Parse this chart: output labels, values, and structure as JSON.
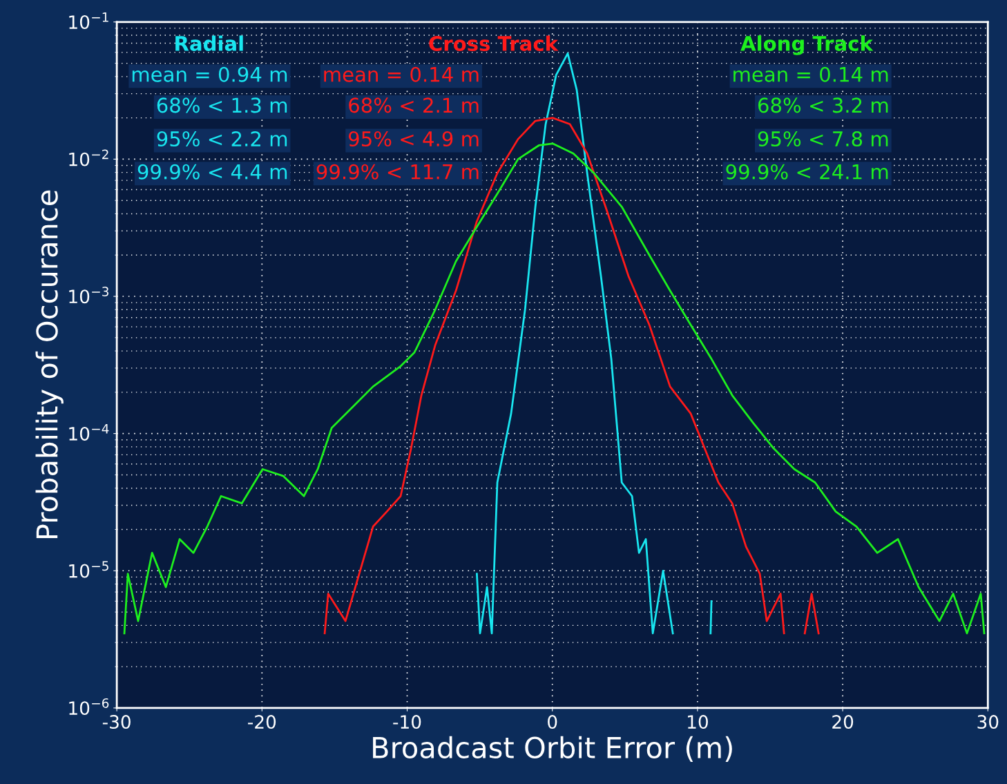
{
  "chart_data": {
    "type": "line",
    "xlabel": "Broadcast Orbit Error (m)",
    "ylabel": "Probability of Occurance",
    "log": "y",
    "grid": true,
    "xlim": [
      -30,
      30
    ],
    "xticks": [
      -30,
      -20,
      -10,
      0,
      10,
      20,
      30
    ],
    "ylim": [
      1e-06,
      0.1
    ],
    "yticks": [
      {
        "value": 1e-06,
        "label": "10$^{−6}$"
      },
      {
        "value": 1e-05,
        "label": "10$^{−5}$"
      },
      {
        "value": 0.0001,
        "label": "10$^{−4}$"
      },
      {
        "value": 0.001,
        "label": "10$^{−3}$"
      },
      {
        "value": 0.01,
        "label": "10$^{−2}$"
      },
      {
        "value": 0.1,
        "label": "10$^{−1}$"
      }
    ],
    "series": [
      {
        "name": "Radial",
        "color": "#19e6f0",
        "x": [
          -5.2,
          -4.98,
          -4.5,
          -4.17,
          -3.79,
          -2.84,
          -1.88,
          -1.17,
          -0.46,
          0.26,
          1.06,
          1.68,
          2.4,
          3.35,
          4.06,
          4.78,
          5.49,
          5.97,
          6.44,
          6.92,
          7.63,
          8.3,
          9.5,
          10.9,
          10.96
        ],
        "values": [
          9.5e-06,
          3.5e-06,
          7.6e-06,
          3.5e-06,
          4.4e-05,
          0.00014,
          0.0008,
          0.0045,
          0.018,
          0.041,
          0.059,
          0.032,
          0.0079,
          0.0014,
          0.00035,
          4.4e-05,
          3.5e-05,
          1.35e-05,
          1.7e-05,
          3.5e-06,
          1e-05,
          3.5e-06,
          null,
          3.5e-06,
          6e-06
        ]
      },
      {
        "name": "Cross Track",
        "color": "#ff1a1a",
        "x": [
          -15.68,
          -15.44,
          -14.25,
          -13.3,
          -12.35,
          -11.4,
          -10.45,
          -9.73,
          -9.02,
          -8.07,
          -6.64,
          -5.21,
          -3.79,
          -2.36,
          -1.17,
          0.02,
          1.21,
          2.4,
          3.83,
          5.25,
          6.68,
          8.11,
          9.53,
          10.49,
          11.44,
          12.39,
          13.34,
          14.29,
          14.77,
          15.72,
          15.96,
          16.8,
          17.39,
          17.86,
          18.34
        ],
        "values": [
          3.5e-06,
          6.8e-06,
          4.3e-06,
          9.5e-06,
          2.1e-05,
          2.7e-05,
          3.5e-05,
          7.8e-05,
          0.00019,
          0.00044,
          0.0011,
          0.0035,
          0.0079,
          0.014,
          0.019,
          0.02,
          0.018,
          0.011,
          0.004,
          0.0014,
          0.00062,
          0.00022,
          0.00014,
          7.8e-05,
          4.4e-05,
          3.1e-05,
          1.5e-05,
          9.5e-06,
          4.3e-06,
          6.8e-06,
          3.5e-06,
          null,
          3.5e-06,
          6.8e-06,
          3.5e-06
        ]
      },
      {
        "name": "Along Track",
        "color": "#1ef01e",
        "x": [
          -29.48,
          -29.24,
          -28.53,
          -27.57,
          -26.62,
          -25.67,
          -24.72,
          -23.77,
          -22.82,
          -21.39,
          -19.96,
          -18.53,
          -17.11,
          -16.16,
          -15.2,
          -13.78,
          -12.35,
          -10.45,
          -9.5,
          -8.07,
          -6.64,
          -5.21,
          -3.79,
          -2.36,
          -0.93,
          0.02,
          1.45,
          2.87,
          4.78,
          6.68,
          8.11,
          9.53,
          10.96,
          12.39,
          13.82,
          15.24,
          16.67,
          18.1,
          19.52,
          20.95,
          22.38,
          23.81,
          25.23,
          26.66,
          27.61,
          28.56,
          29.51,
          29.75
        ],
        "values": [
          3.5e-06,
          9.5e-06,
          4.3e-06,
          1.35e-05,
          7.6e-06,
          1.7e-05,
          1.35e-05,
          2.1e-05,
          3.5e-05,
          3.1e-05,
          5.5e-05,
          4.9e-05,
          3.5e-05,
          5.5e-05,
          0.00011,
          0.000155,
          0.00022,
          0.00031,
          0.00039,
          0.0008,
          0.0018,
          0.0032,
          0.0056,
          0.01,
          0.0126,
          0.013,
          0.011,
          0.0079,
          0.0045,
          0.002,
          0.0011,
          0.00062,
          0.00035,
          0.00019,
          0.00012,
          7.8e-05,
          5.5e-05,
          4.4e-05,
          2.7e-05,
          2.1e-05,
          1.35e-05,
          1.7e-05,
          7.6e-06,
          4.3e-06,
          6.8e-06,
          3.5e-06,
          6.8e-06,
          3.5e-06
        ]
      }
    ],
    "annotations": [
      "mean = 0.94 m",
      "68% < 1.3 m",
      "95% < 2.2 m",
      "99.9% < 4.4 m",
      "mean = 0.14 m",
      "68% < 2.1 m",
      "95% < 4.9 m",
      "99.9% < 11.7 m",
      "mean = 0.14 m",
      "68% < 3.2 m",
      "95% < 7.8 m",
      "99.9% < 24.1 m"
    ]
  }
}
